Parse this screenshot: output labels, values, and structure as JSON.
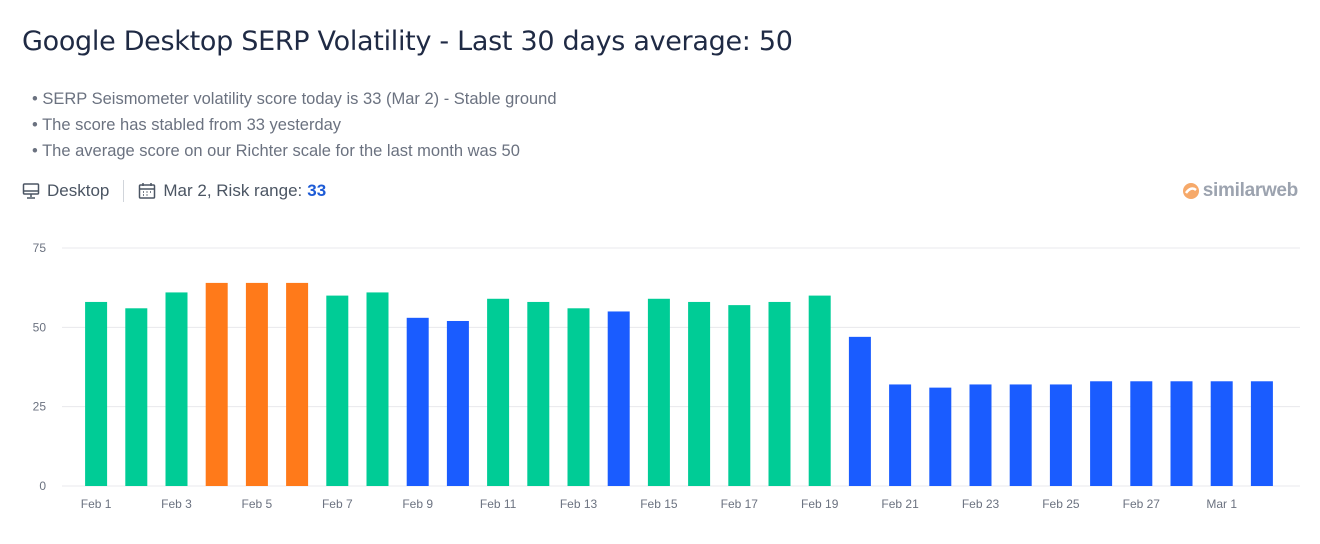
{
  "title": "Google Desktop SERP Volatility - Last 30 days average: 50",
  "bullets": [
    "SERP Seismometer volatility score today is 33 (Mar 2) - Stable ground",
    "The score has stabled from 33 yesterday",
    "The average score on our Richter scale for the last month was 50"
  ],
  "meta": {
    "device": "Desktop",
    "device_icon": "monitor-icon",
    "date_label": "Mar 2, Risk range:",
    "risk_value": "33",
    "date_icon": "calendar-icon"
  },
  "logo": "similarweb",
  "colors": {
    "green": "#00CC96",
    "orange": "#FF7A1A",
    "blue": "#1A5CFF",
    "risk": "#1d5bd6"
  },
  "chart_data": {
    "type": "bar",
    "title": "",
    "xlabel": "",
    "ylabel": "",
    "ylim": [
      0,
      75
    ],
    "yticks": [
      0,
      25,
      50,
      75
    ],
    "grid": true,
    "categories": [
      "Feb 1",
      "Feb 2",
      "Feb 3",
      "Feb 4",
      "Feb 5",
      "Feb 6",
      "Feb 7",
      "Feb 8",
      "Feb 9",
      "Feb 10",
      "Feb 11",
      "Feb 12",
      "Feb 13",
      "Feb 14",
      "Feb 15",
      "Feb 16",
      "Feb 17",
      "Feb 18",
      "Feb 19",
      "Feb 20",
      "Feb 21",
      "Feb 22",
      "Feb 23",
      "Feb 24",
      "Feb 25",
      "Feb 26",
      "Feb 27",
      "Feb 28",
      "Mar 1",
      "Mar 2"
    ],
    "xtick_labels": [
      "Feb 1",
      "Feb 3",
      "Feb 5",
      "Feb 7",
      "Feb 9",
      "Feb 11",
      "Feb 13",
      "Feb 15",
      "Feb 17",
      "Feb 19",
      "Feb 21",
      "Feb 23",
      "Feb 25",
      "Feb 27",
      "Mar 1"
    ],
    "values": [
      58,
      56,
      61,
      64,
      64,
      64,
      60,
      61,
      53,
      52,
      59,
      58,
      56,
      55,
      59,
      58,
      57,
      58,
      60,
      47,
      32,
      31,
      32,
      32,
      32,
      33,
      33,
      33,
      33,
      33
    ],
    "bar_colors": [
      "green",
      "green",
      "green",
      "orange",
      "orange",
      "orange",
      "green",
      "green",
      "blue",
      "blue",
      "green",
      "green",
      "green",
      "blue",
      "green",
      "green",
      "green",
      "green",
      "green",
      "blue",
      "blue",
      "blue",
      "blue",
      "blue",
      "blue",
      "blue",
      "blue",
      "blue",
      "blue",
      "blue"
    ]
  }
}
